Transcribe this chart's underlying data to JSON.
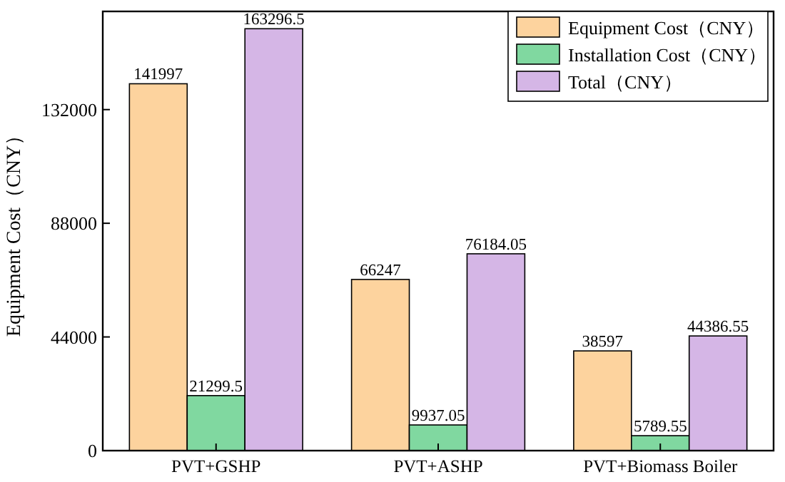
{
  "chart_data": {
    "type": "bar",
    "ylabel": "Equipment Cost（CNY）",
    "categories": [
      "PVT+GSHP",
      "PVT+ASHP",
      "PVT+Biomass Boiler"
    ],
    "series": [
      {
        "name": "Equipment Cost（CNY）",
        "color": "#fdd39e",
        "values": [
          141997,
          66247,
          38597
        ]
      },
      {
        "name": "Installation Cost（CNY）",
        "color": "#80d8a0",
        "values": [
          21299.5,
          9937.05,
          5789.55
        ]
      },
      {
        "name": "Total（CNY）",
        "color": "#d5b6e6",
        "values": [
          163296.5,
          76184.05,
          44386.55
        ]
      }
    ],
    "ylim": [
      0,
      170000
    ],
    "yticks": [
      0,
      44000,
      88000,
      132000
    ],
    "data_labels": true,
    "legend": "top right",
    "grid": false
  }
}
